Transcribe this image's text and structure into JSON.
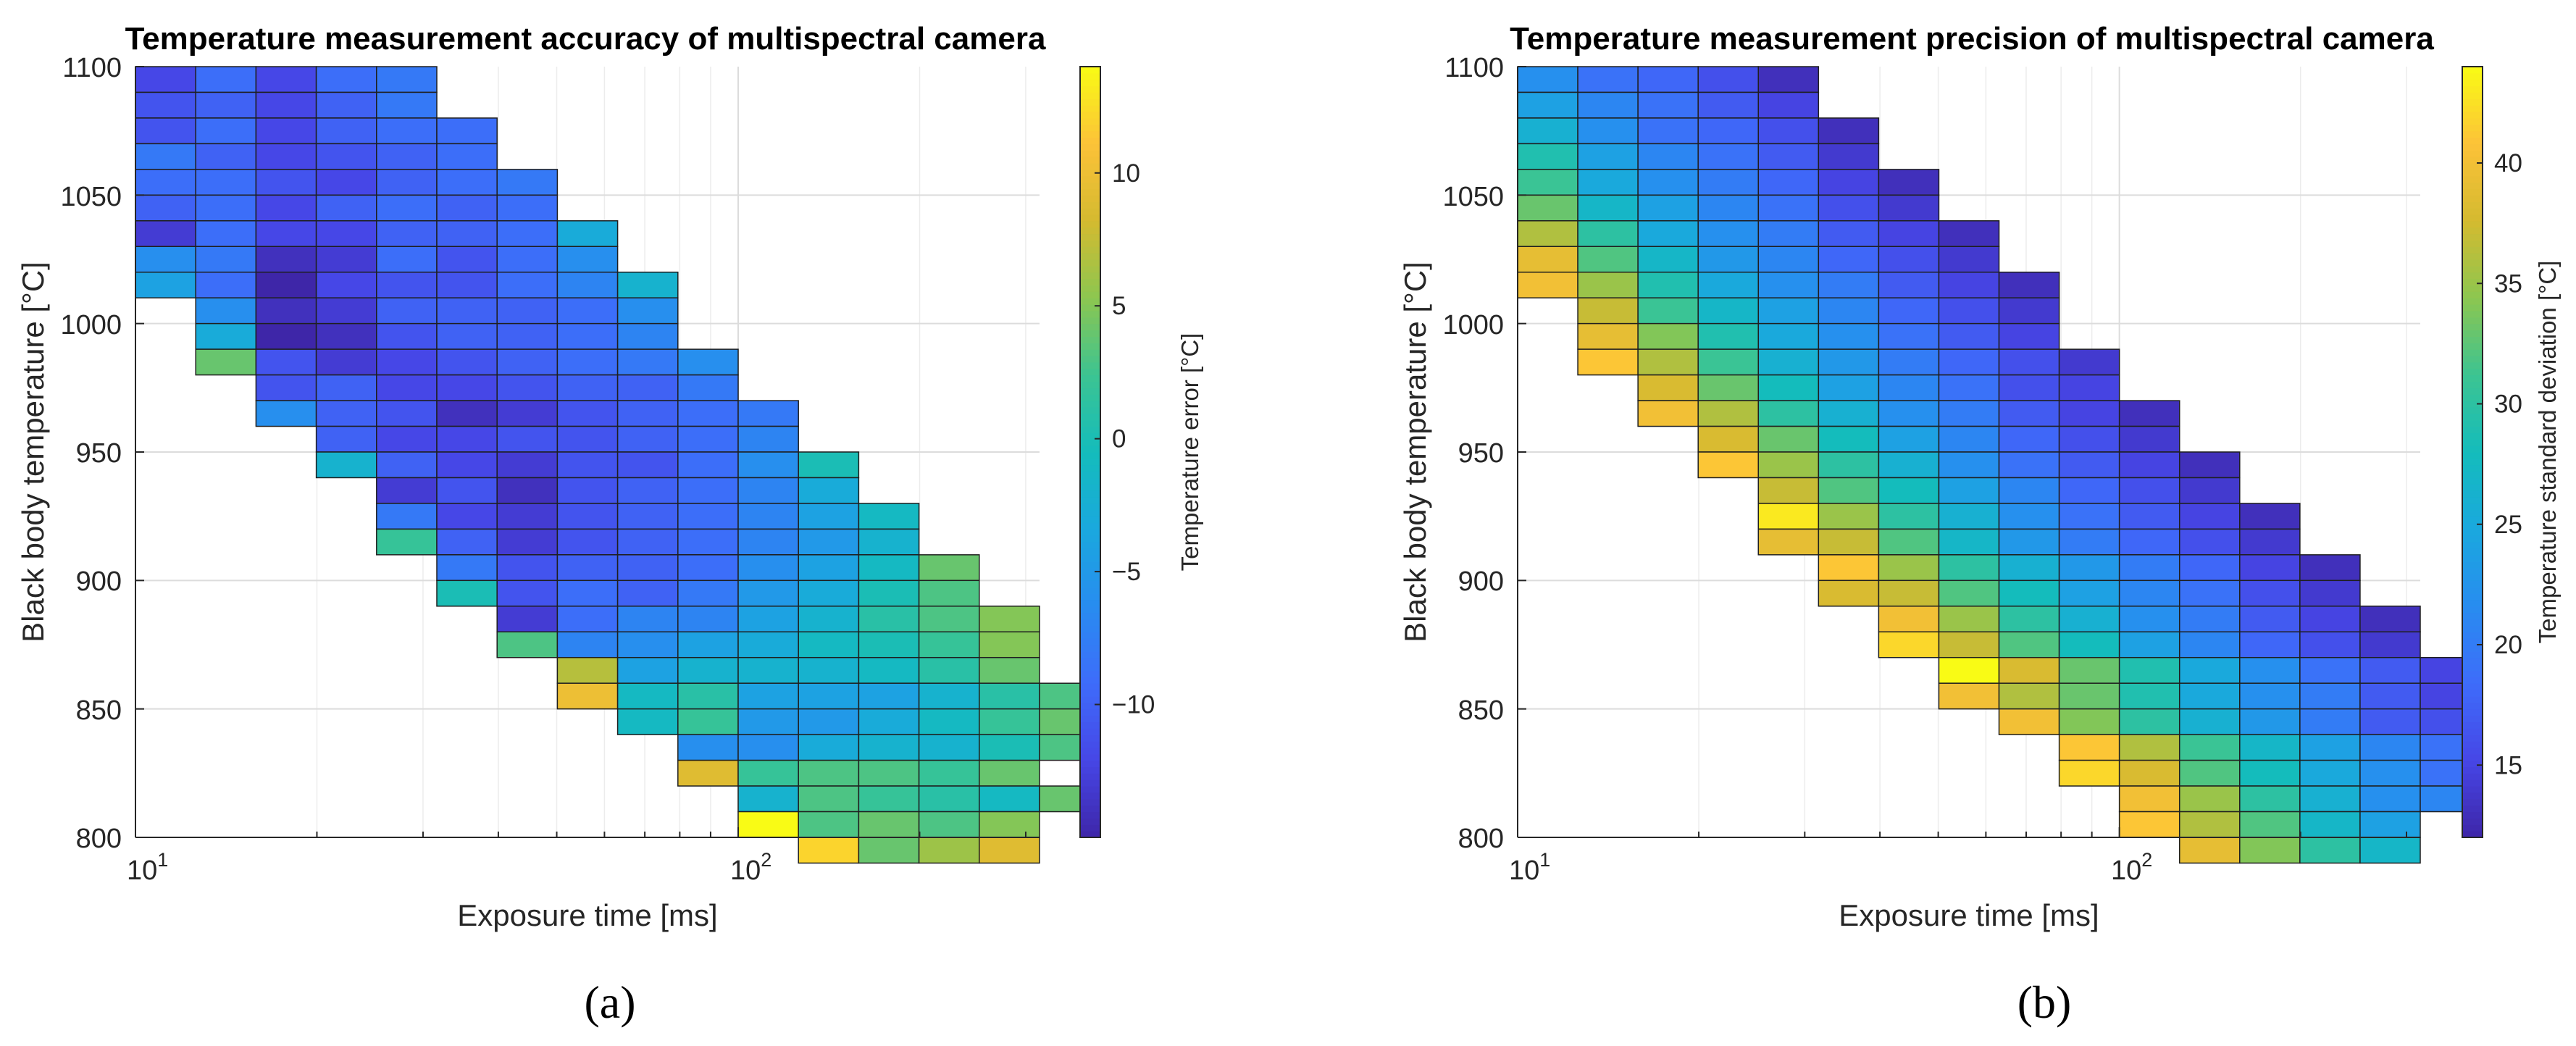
{
  "chart_data": [
    {
      "type": "heatmap",
      "panel_label": "(a)",
      "title": "Temperature measurement accuracy of multispectral camera",
      "xlabel": "Exposure time [ms]",
      "ylabel": "Black body temperature [°C]",
      "x_scale": "log",
      "x_base": "10",
      "x_tick_exponents": [
        "1",
        "2"
      ],
      "xlim_log10": [
        1,
        2.5
      ],
      "x_bins": 15,
      "ylim": [
        800,
        1100
      ],
      "y_ticks": [
        "800",
        "850",
        "900",
        "950",
        "1000",
        "1050",
        "1100"
      ],
      "y_step": 10,
      "colorbar_label": "Temperature error [°C]",
      "clim": [
        -15,
        14
      ],
      "colorbar_ticks": [
        "−10",
        "−5",
        "0",
        "5",
        "10"
      ],
      "colorbar_tick_values": [
        -10,
        -5,
        0,
        5,
        10
      ],
      "rows": [
        {
          "y": 1090,
          "start": 0,
          "values": [
            -12,
            -9,
            -12,
            -9,
            -8
          ]
        },
        {
          "y": 1080,
          "start": 0,
          "values": [
            -11,
            -10,
            -12,
            -10,
            -8
          ]
        },
        {
          "y": 1070,
          "start": 0,
          "values": [
            -11,
            -9,
            -12,
            -10,
            -9,
            -9
          ]
        },
        {
          "y": 1060,
          "start": 0,
          "values": [
            -8,
            -10,
            -12,
            -11,
            -10,
            -9
          ]
        },
        {
          "y": 1050,
          "start": 0,
          "values": [
            -9,
            -9,
            -11,
            -12,
            -10,
            -9,
            -8
          ]
        },
        {
          "y": 1040,
          "start": 0,
          "values": [
            -10,
            -9,
            -12,
            -10,
            -9,
            -10,
            -9
          ]
        },
        {
          "y": 1030,
          "start": 0,
          "values": [
            -13,
            -9,
            -12,
            -12,
            -10,
            -10,
            -9,
            -3
          ]
        },
        {
          "y": 1020,
          "start": 0,
          "values": [
            -6,
            -8,
            -14,
            -13,
            -9,
            -11,
            -9,
            -6
          ]
        },
        {
          "y": 1010,
          "start": 0,
          "values": [
            -4,
            -9,
            -15,
            -12,
            -11,
            -11,
            -9,
            -7,
            -2
          ]
        },
        {
          "y": 1000,
          "start": 1,
          "values": [
            -6,
            -14,
            -13,
            -10,
            -10,
            -10,
            -9,
            -6
          ]
        },
        {
          "y": 990,
          "start": 1,
          "values": [
            -3,
            -15,
            -14,
            -11,
            -10,
            -10,
            -9,
            -7
          ]
        },
        {
          "y": 980,
          "start": 1,
          "values": [
            4,
            -11,
            -13,
            -12,
            -11,
            -10,
            -9,
            -8,
            -6
          ]
        },
        {
          "y": 970,
          "start": 2,
          "values": [
            -11,
            -10,
            -12,
            -12,
            -11,
            -10,
            -10,
            -8
          ]
        },
        {
          "y": 960,
          "start": 2,
          "values": [
            -6,
            -10,
            -11,
            -14,
            -13,
            -11,
            -10,
            -9,
            -8
          ]
        },
        {
          "y": 950,
          "start": 3,
          "values": [
            -10,
            -12,
            -12,
            -11,
            -11,
            -10,
            -9,
            -7
          ]
        },
        {
          "y": 940,
          "start": 3,
          "values": [
            -2,
            -10,
            -12,
            -13,
            -11,
            -11,
            -9,
            -6,
            0
          ]
        },
        {
          "y": 930,
          "start": 4,
          "values": [
            -13,
            -11,
            -14,
            -11,
            -10,
            -9,
            -7,
            -3
          ]
        },
        {
          "y": 920,
          "start": 4,
          "values": [
            -8,
            -12,
            -13,
            -11,
            -10,
            -9,
            -7,
            -4,
            -1
          ]
        },
        {
          "y": 910,
          "start": 4,
          "values": [
            2,
            -10,
            -13,
            -11,
            -10,
            -9,
            -7,
            -5,
            -2
          ]
        },
        {
          "y": 900,
          "start": 5,
          "values": [
            -8,
            -11,
            -10,
            -10,
            -9,
            -6,
            -4,
            -1,
            4
          ]
        },
        {
          "y": 890,
          "start": 5,
          "values": [
            0,
            -11,
            -9,
            -10,
            -8,
            -5,
            -3,
            0,
            3
          ]
        },
        {
          "y": 880,
          "start": 6,
          "values": [
            -13,
            -9,
            -7,
            -7,
            -4,
            -2,
            1,
            3,
            5
          ]
        },
        {
          "y": 870,
          "start": 6,
          "values": [
            3,
            -7,
            -6,
            -4,
            -3,
            -1,
            0,
            2,
            5
          ]
        },
        {
          "y": 860,
          "start": 7,
          "values": [
            7,
            -4,
            -2,
            -2,
            -2,
            -1,
            1,
            4
          ]
        },
        {
          "y": 850,
          "start": 7,
          "values": [
            10,
            -1,
            1,
            -4,
            -4,
            -4,
            -2,
            1,
            3
          ]
        },
        {
          "y": 840,
          "start": 8,
          "values": [
            -1,
            2,
            -5,
            -5,
            -3,
            -1,
            2,
            4
          ]
        },
        {
          "y": 830,
          "start": 9,
          "values": [
            -6,
            -6,
            -3,
            -2,
            -2,
            0,
            3
          ]
        },
        {
          "y": 820,
          "start": 9,
          "values": [
            9,
            2,
            3,
            3,
            2,
            4
          ]
        },
        {
          "y": 810,
          "start": 10,
          "values": [
            -2,
            3,
            2,
            1,
            -1,
            4
          ]
        },
        {
          "y": 800,
          "start": 10,
          "values": [
            14,
            3,
            4,
            3,
            5
          ]
        },
        {
          "y": 790,
          "start": 11,
          "values": [
            12,
            4,
            6,
            9
          ]
        }
      ]
    },
    {
      "type": "heatmap",
      "panel_label": "(b)",
      "title": "Temperature measurement precision of multispectral camera",
      "xlabel": "Exposure time [ms]",
      "ylabel": "Black body temperature [°C]",
      "x_scale": "log",
      "x_base": "10",
      "x_tick_exponents": [
        "1",
        "2"
      ],
      "xlim_log10": [
        1,
        2.5
      ],
      "x_bins": 15,
      "ylim": [
        800,
        1100
      ],
      "y_ticks": [
        "800",
        "850",
        "900",
        "950",
        "1000",
        "1050",
        "1100"
      ],
      "y_step": 10,
      "colorbar_label": "Temperature standard deviation [°C]",
      "clim": [
        12,
        44
      ],
      "colorbar_ticks": [
        "15",
        "20",
        "25",
        "30",
        "35",
        "40"
      ],
      "colorbar_tick_values": [
        15,
        20,
        25,
        30,
        35,
        40
      ],
      "rows": [
        {
          "y": 1090,
          "start": 0,
          "values": [
            22,
            19,
            18,
            16,
            13
          ]
        },
        {
          "y": 1080,
          "start": 0,
          "values": [
            24,
            21,
            19,
            17,
            15
          ]
        },
        {
          "y": 1070,
          "start": 0,
          "values": [
            26,
            22,
            19,
            18,
            16,
            13
          ]
        },
        {
          "y": 1060,
          "start": 0,
          "values": [
            29,
            24,
            21,
            19,
            17,
            14
          ]
        },
        {
          "y": 1050,
          "start": 0,
          "values": [
            31,
            25,
            22,
            20,
            18,
            15,
            13
          ]
        },
        {
          "y": 1040,
          "start": 0,
          "values": [
            33,
            27,
            24,
            21,
            19,
            16,
            14
          ]
        },
        {
          "y": 1030,
          "start": 0,
          "values": [
            36,
            30,
            25,
            22,
            20,
            17,
            15,
            13
          ]
        },
        {
          "y": 1020,
          "start": 0,
          "values": [
            39,
            32,
            27,
            23,
            21,
            18,
            16,
            14
          ]
        },
        {
          "y": 1010,
          "start": 0,
          "values": [
            40,
            35,
            29,
            25,
            22,
            20,
            17,
            15,
            13
          ]
        },
        {
          "y": 1000,
          "start": 1,
          "values": [
            37,
            31,
            27,
            24,
            21,
            18,
            16,
            14
          ]
        },
        {
          "y": 990,
          "start": 1,
          "values": [
            39,
            34,
            29,
            25,
            22,
            19,
            17,
            15
          ]
        },
        {
          "y": 980,
          "start": 1,
          "values": [
            41,
            36,
            31,
            26,
            23,
            20,
            18,
            16,
            14
          ]
        },
        {
          "y": 970,
          "start": 2,
          "values": [
            38,
            33,
            28,
            24,
            21,
            19,
            16,
            15
          ]
        },
        {
          "y": 960,
          "start": 2,
          "values": [
            40,
            36,
            30,
            26,
            22,
            20,
            17,
            15,
            13
          ]
        },
        {
          "y": 950,
          "start": 3,
          "values": [
            38,
            33,
            28,
            24,
            21,
            18,
            16,
            14
          ]
        },
        {
          "y": 940,
          "start": 3,
          "values": [
            41,
            35,
            30,
            26,
            22,
            19,
            17,
            15,
            13
          ]
        },
        {
          "y": 930,
          "start": 4,
          "values": [
            37,
            32,
            28,
            24,
            21,
            18,
            16,
            14
          ]
        },
        {
          "y": 920,
          "start": 4,
          "values": [
            43,
            35,
            30,
            26,
            22,
            19,
            17,
            15,
            13
          ]
        },
        {
          "y": 910,
          "start": 4,
          "values": [
            39,
            37,
            32,
            27,
            23,
            20,
            18,
            16,
            14
          ]
        },
        {
          "y": 900,
          "start": 5,
          "values": [
            41,
            35,
            30,
            26,
            23,
            20,
            18,
            15,
            13
          ]
        },
        {
          "y": 890,
          "start": 5,
          "values": [
            38,
            37,
            32,
            28,
            24,
            21,
            19,
            16,
            14
          ]
        },
        {
          "y": 880,
          "start": 6,
          "values": [
            40,
            35,
            30,
            26,
            22,
            20,
            17,
            15,
            13
          ]
        },
        {
          "y": 870,
          "start": 6,
          "values": [
            42,
            37,
            32,
            28,
            24,
            21,
            18,
            16,
            14
          ]
        },
        {
          "y": 860,
          "start": 7,
          "values": [
            44,
            38,
            33,
            29,
            25,
            22,
            19,
            17,
            15
          ]
        },
        {
          "y": 850,
          "start": 7,
          "values": [
            40,
            36,
            33,
            29,
            25,
            22,
            20,
            17,
            15
          ]
        },
        {
          "y": 840,
          "start": 8,
          "values": [
            40,
            34,
            30,
            26,
            23,
            20,
            17,
            16
          ]
        },
        {
          "y": 830,
          "start": 9,
          "values": [
            41,
            36,
            31,
            27,
            24,
            21,
            19
          ]
        },
        {
          "y": 820,
          "start": 9,
          "values": [
            42,
            38,
            32,
            28,
            25,
            22,
            19
          ]
        },
        {
          "y": 810,
          "start": 10,
          "values": [
            40,
            35,
            30,
            26,
            22,
            21
          ]
        },
        {
          "y": 800,
          "start": 10,
          "values": [
            41,
            36,
            32,
            27,
            24
          ]
        },
        {
          "y": 790,
          "start": 11,
          "values": [
            39,
            34,
            30,
            27
          ]
        }
      ]
    }
  ]
}
